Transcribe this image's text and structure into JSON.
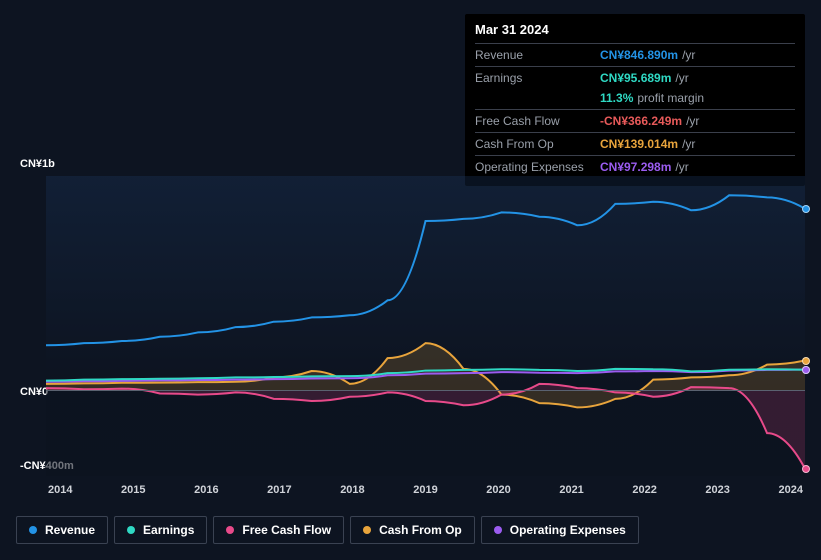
{
  "colors": {
    "revenue": "#2393e6",
    "earnings": "#2fd9c4",
    "fcf": "#e84a8a",
    "cfo": "#e8a43c",
    "opex": "#9b5cf0",
    "neg": "#e85a5a",
    "bg": "#0d1421",
    "tooltip_bg": "#000000",
    "grid": "#5a6270",
    "text_muted": "#9aa0aa"
  },
  "tooltip": {
    "title": "Mar 31 2024",
    "rows": [
      {
        "label": "Revenue",
        "value": "CN¥846.890m",
        "unit": "/yr",
        "colorKey": "revenue"
      },
      {
        "label": "Earnings",
        "value": "CN¥95.689m",
        "unit": "/yr",
        "colorKey": "earnings",
        "sub": {
          "value": "11.3%",
          "label": "profit margin",
          "colorKey": "earnings"
        }
      },
      {
        "label": "Free Cash Flow",
        "value": "-CN¥366.249m",
        "unit": "/yr",
        "colorKey": "neg"
      },
      {
        "label": "Cash From Op",
        "value": "CN¥139.014m",
        "unit": "/yr",
        "colorKey": "cfo"
      },
      {
        "label": "Operating Expenses",
        "value": "CN¥97.298m",
        "unit": "/yr",
        "colorKey": "opex"
      }
    ]
  },
  "chart": {
    "y_top_label": "CN¥1b",
    "y_zero_label": "CN¥0",
    "y_bottom_label": "-CN¥400m",
    "y_max": 1000,
    "y_min": -400,
    "x_labels": [
      "2014",
      "2015",
      "2016",
      "2017",
      "2018",
      "2019",
      "2020",
      "2021",
      "2022",
      "2023",
      "2024"
    ],
    "series": {
      "revenue": [
        210,
        220,
        230,
        250,
        270,
        295,
        320,
        340,
        350,
        420,
        790,
        800,
        830,
        810,
        770,
        870,
        880,
        840,
        910,
        900,
        847
      ],
      "earnings": [
        45,
        50,
        52,
        54,
        56,
        60,
        62,
        65,
        66,
        80,
        92,
        95,
        98,
        95,
        90,
        100,
        98,
        88,
        96,
        98,
        96
      ],
      "fcf": [
        10,
        5,
        8,
        -15,
        -20,
        -10,
        -40,
        -50,
        -30,
        -10,
        -50,
        -70,
        -20,
        30,
        10,
        -10,
        -30,
        15,
        10,
        -200,
        -366
      ],
      "cfo": [
        30,
        32,
        35,
        36,
        38,
        40,
        60,
        90,
        30,
        150,
        220,
        100,
        -20,
        -60,
        -80,
        -40,
        50,
        60,
        70,
        120,
        139
      ],
      "opex": [
        40,
        42,
        44,
        46,
        48,
        50,
        52,
        55,
        56,
        70,
        78,
        80,
        85,
        82,
        80,
        88,
        90,
        85,
        92,
        95,
        97
      ]
    },
    "end_markers": true
  },
  "legend": [
    {
      "label": "Revenue",
      "colorKey": "revenue"
    },
    {
      "label": "Earnings",
      "colorKey": "earnings"
    },
    {
      "label": "Free Cash Flow",
      "colorKey": "fcf"
    },
    {
      "label": "Cash From Op",
      "colorKey": "cfo"
    },
    {
      "label": "Operating Expenses",
      "colorKey": "opex"
    }
  ]
}
